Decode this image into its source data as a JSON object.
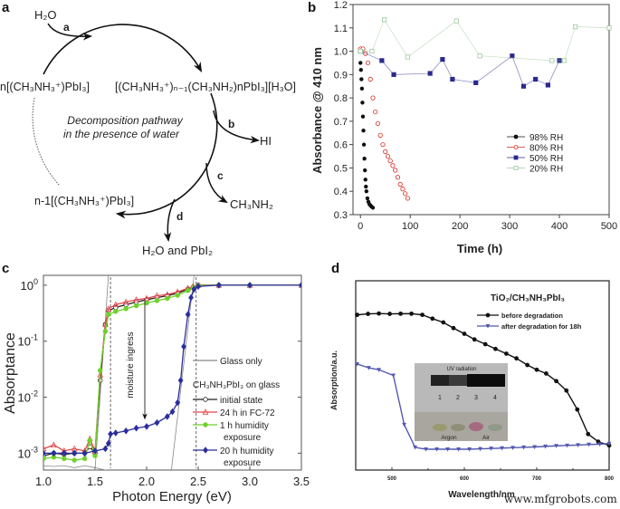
{
  "panel_labels": [
    "a",
    "b",
    "c",
    "d"
  ],
  "diagram_a": {
    "water_in": "H₂O",
    "reactant": "n[(CH₃NH₃⁺)PbI₃]",
    "intermediate": "[(CH₃NH₃⁺)ₙ₋₁(CH₃NH₂)nPbI₃][H₃O]",
    "center_text_line1": "Decomposition pathway",
    "center_text_line2": "in the presence of water",
    "product_b": "HI",
    "product_c": "CH₃NH₂",
    "remaining": "n-1[(CH₃NH₃⁺)PbI₃]",
    "product_d": "H₂O and PbI₂",
    "step_labels": [
      "a",
      "b",
      "c",
      "d"
    ]
  },
  "chart_data": [
    {
      "panel": "b",
      "type": "scatter",
      "xlabel": "Time (h)",
      "ylabel": "Absorbance @ 410 nm",
      "xlim": [
        -15,
        500
      ],
      "ylim": [
        0.3,
        1.2
      ],
      "xticks": [
        "0",
        "100",
        "200",
        "300",
        "400",
        "500"
      ],
      "yticks": [
        "0.3",
        "0.4",
        "0.5",
        "0.6",
        "0.7",
        "0.8",
        "0.9",
        "1.0",
        "1.1",
        "1.2"
      ],
      "grid": false,
      "legend": "center-right",
      "series": [
        {
          "name": "98% RH",
          "color": "#111111",
          "marker": "filled-circle",
          "x": [
            0,
            1,
            2,
            3,
            4,
            5,
            6,
            7,
            8,
            9,
            10,
            11,
            12,
            14,
            16,
            18,
            20,
            22,
            25
          ],
          "y": [
            0.95,
            0.92,
            0.88,
            0.84,
            0.78,
            0.72,
            0.66,
            0.6,
            0.54,
            0.49,
            0.45,
            0.42,
            0.4,
            0.37,
            0.355,
            0.345,
            0.34,
            0.335,
            0.33
          ]
        },
        {
          "name": "80% RH",
          "color": "#d42a1e",
          "marker": "open-circle",
          "x": [
            0,
            5,
            10,
            15,
            20,
            25,
            30,
            35,
            40,
            45,
            50,
            55,
            60,
            65,
            70,
            75,
            80,
            85,
            90,
            95
          ],
          "y": [
            1.01,
            1.01,
            0.99,
            0.95,
            0.88,
            0.8,
            0.74,
            0.69,
            0.64,
            0.6,
            0.57,
            0.55,
            0.53,
            0.51,
            0.49,
            0.46,
            0.43,
            0.41,
            0.39,
            0.37
          ]
        },
        {
          "name": "50% RH",
          "color": "#2a2a8c",
          "marker": "filled-square",
          "x": [
            0,
            43,
            67,
            140,
            165,
            185,
            232,
            305,
            328,
            352,
            377,
            400
          ],
          "y": [
            1.0,
            0.96,
            0.9,
            0.905,
            0.965,
            0.88,
            0.865,
            0.98,
            0.85,
            0.88,
            0.855,
            0.96
          ]
        },
        {
          "name": "20% RH",
          "color": "#9cc89c",
          "marker": "open-square",
          "x": [
            0,
            23,
            48,
            95,
            193,
            240,
            385,
            410,
            432,
            500
          ],
          "y": [
            1.0,
            1.0,
            1.135,
            0.975,
            1.13,
            0.98,
            0.96,
            0.96,
            1.105,
            1.1
          ]
        }
      ]
    },
    {
      "panel": "c",
      "type": "line",
      "xlabel": "Photon Energy (eV)",
      "ylabel": "Absorptance",
      "xlim": [
        1.0,
        3.5
      ],
      "ylim": [
        0.0005,
        1.5
      ],
      "yscale": "log",
      "xticks": [
        "1.0",
        "1.5",
        "2.0",
        "2.5",
        "3.0",
        "3.5"
      ],
      "yticks": [
        {
          "base": "10",
          "exp": "0"
        },
        {
          "base": "10",
          "exp": "-1"
        },
        {
          "base": "10",
          "exp": "-2"
        },
        {
          "base": "10",
          "exp": "-3"
        }
      ],
      "grid": false,
      "legend": "lower-right",
      "annotation": "moisture ingress",
      "legend_group_title": "CH₃NH₃PbI₃ on glass",
      "dashed_lines_x": [
        1.65,
        2.48
      ],
      "series": [
        {
          "name": "Glass only",
          "color": "#888888",
          "marker": "none",
          "x": [
            1.0,
            1.1,
            1.2,
            1.3,
            1.4,
            1.5,
            1.6,
            1.63
          ],
          "y": [
            0.0006,
            0.00058,
            0.0006,
            0.00055,
            0.0006,
            0.00055,
            0.0005,
            0.0005
          ],
          "fit_lines": [
            {
              "x": [
                1.5,
                1.63
              ],
              "y": [
                0.0005,
                1.5
              ]
            },
            {
              "x": [
                2.24,
                2.46
              ],
              "y": [
                0.0005,
                1.5
              ]
            }
          ]
        },
        {
          "name": "initial state",
          "color": "#222222",
          "marker": "open-circle",
          "x": [
            1.0,
            1.1,
            1.2,
            1.3,
            1.4,
            1.45,
            1.5,
            1.55,
            1.6,
            1.63,
            1.7,
            1.8,
            1.9,
            2.0,
            2.1,
            2.2,
            2.3,
            2.4,
            2.45,
            2.5,
            2.7,
            3.0,
            3.5
          ],
          "y": [
            0.0009,
            0.001,
            0.00095,
            0.001,
            0.001,
            0.0013,
            0.001,
            0.02,
            0.2,
            0.35,
            0.4,
            0.45,
            0.5,
            0.55,
            0.6,
            0.65,
            0.72,
            0.85,
            0.92,
            1,
            1,
            1,
            1
          ]
        },
        {
          "name": "24 h in FC-72",
          "color": "#e0484a",
          "marker": "open-triangle",
          "x": [
            1.0,
            1.1,
            1.2,
            1.3,
            1.4,
            1.45,
            1.5,
            1.55,
            1.6,
            1.63,
            1.7,
            1.8,
            1.9,
            2.0,
            2.1,
            2.2,
            2.3,
            2.4,
            2.45,
            2.5,
            2.7,
            3.0,
            3.5
          ],
          "y": [
            0.0012,
            0.0014,
            0.0011,
            0.0012,
            0.0011,
            0.0018,
            0.0011,
            0.025,
            0.2,
            0.38,
            0.45,
            0.5,
            0.55,
            0.58,
            0.65,
            0.68,
            0.76,
            0.88,
            0.95,
            1,
            1,
            1,
            1
          ]
        },
        {
          "name": "1 h humidity exposure",
          "color": "#6fd12a",
          "marker": "filled-circle",
          "x": [
            1.0,
            1.1,
            1.2,
            1.3,
            1.4,
            1.45,
            1.5,
            1.55,
            1.6,
            1.63,
            1.7,
            1.8,
            1.9,
            2.0,
            2.1,
            2.2,
            2.3,
            2.4,
            2.45,
            2.5,
            2.7,
            3.0,
            3.5
          ],
          "y": [
            0.0008,
            0.00085,
            0.0008,
            0.00075,
            0.0008,
            0.0017,
            0.0009,
            0.03,
            0.15,
            0.3,
            0.34,
            0.38,
            0.43,
            0.48,
            0.53,
            0.58,
            0.66,
            0.8,
            0.9,
            0.98,
            1,
            1,
            1
          ]
        },
        {
          "name": "20 h humidity exposure",
          "color": "#2b2f9c",
          "marker": "filled-diamond",
          "x": [
            1.0,
            1.1,
            1.2,
            1.3,
            1.4,
            1.5,
            1.6,
            1.63,
            1.65,
            1.7,
            1.8,
            1.9,
            2.0,
            2.1,
            2.2,
            2.25,
            2.3,
            2.33,
            2.36,
            2.4,
            2.43,
            2.46,
            2.5,
            2.7,
            3.0,
            3.5
          ],
          "y": [
            0.001,
            0.001,
            0.001,
            0.001,
            0.001,
            0.0011,
            0.0012,
            0.0015,
            0.0022,
            0.0023,
            0.0025,
            0.0028,
            0.003,
            0.0035,
            0.0045,
            0.0055,
            0.008,
            0.02,
            0.08,
            0.3,
            0.6,
            0.85,
            0.95,
            1,
            1,
            1
          ]
        }
      ]
    },
    {
      "panel": "d",
      "type": "line",
      "title": "TiO₂/CH₃NH₃PbI₃",
      "xlabel": "Wavelength/nm",
      "ylabel": "Absorption/a.u.",
      "xlim": [
        450,
        800
      ],
      "ylim": [
        0,
        1
      ],
      "xticks": [
        "500",
        "600",
        "700",
        "800"
      ],
      "yticks": [],
      "grid": false,
      "legend": "top-right",
      "series": [
        {
          "name": "before degradation",
          "color": "#111111",
          "marker": "filled-circle",
          "x": [
            452,
            467,
            482,
            497,
            512,
            527,
            542,
            556,
            571,
            585,
            600,
            614,
            629,
            643,
            658,
            672,
            687,
            700,
            713,
            727,
            741,
            756,
            771,
            785,
            800
          ],
          "y": [
            0.82,
            0.825,
            0.827,
            0.825,
            0.826,
            0.826,
            0.82,
            0.8,
            0.78,
            0.75,
            0.72,
            0.69,
            0.665,
            0.64,
            0.615,
            0.59,
            0.555,
            0.53,
            0.51,
            0.47,
            0.42,
            0.32,
            0.19,
            0.15,
            0.13
          ]
        },
        {
          "name": "after degradation for 18h",
          "color": "#5458b0",
          "marker": "filled-triangle-down",
          "x": [
            452,
            468,
            482,
            502,
            517,
            532,
            547,
            562,
            577,
            592,
            607,
            622,
            637,
            652,
            667,
            682,
            697,
            712,
            727,
            742,
            757,
            772,
            787,
            800
          ],
          "y": [
            0.56,
            0.54,
            0.53,
            0.5,
            0.24,
            0.12,
            0.11,
            0.11,
            0.11,
            0.11,
            0.11,
            0.112,
            0.114,
            0.116,
            0.118,
            0.12,
            0.122,
            0.125,
            0.128,
            0.13,
            0.132,
            0.135,
            0.137,
            0.14
          ]
        }
      ],
      "inset_photo": {
        "caption": "UV radiation",
        "vials": [
          "1",
          "2",
          "3",
          "4"
        ],
        "groups": [
          "Argon",
          "Air"
        ]
      }
    }
  ],
  "watermark": "www.mfgrobots.com"
}
